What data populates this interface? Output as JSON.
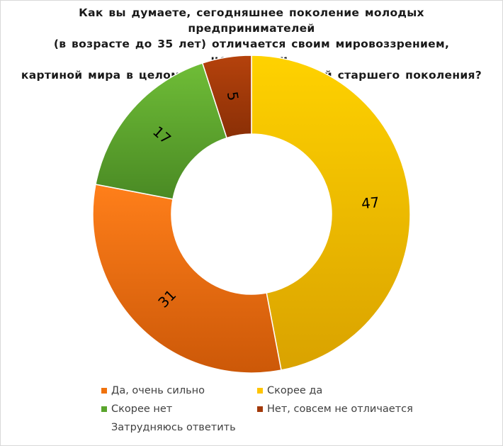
{
  "chart_data": {
    "type": "pie",
    "title": "Как вы думаете, сегодняшнее поколение молодых предпринимателей (в возрасте до 35 лет) отличается своим мировоззрением, ценностями, картиной мира в целом от предпринимателей старшего поколения?",
    "title_lines": [
      "Как вы думаете, сегодняшнее поколение молодых предпринимателей",
      "(в возрасте до 35 лет) отличается своим мировоззрением, ценностями,",
      "картиной мира в целом от предпринимателей старшего поколения?"
    ],
    "donut": true,
    "start_angle_deg": 0,
    "direction": "clockwise",
    "slices": [
      {
        "label": "Скорее да",
        "value": 47,
        "color": "#f7b900",
        "color_light": "#ffd200",
        "color_dark": "#d9a200"
      },
      {
        "label": "Да, очень сильно",
        "value": 31,
        "color": "#f0720d",
        "color_light": "#ff7f1a",
        "color_dark": "#cc5808"
      },
      {
        "label": "Скорее нет",
        "value": 17,
        "color": "#5aa52d",
        "color_light": "#6fbd37",
        "color_dark": "#4a8a24"
      },
      {
        "label": "Нет, совсем не отличается",
        "value": 5,
        "color": "#a33a0a",
        "color_light": "#b5420c",
        "color_dark": "#8a2f06"
      },
      {
        "label": "Затрудняюсь ответить",
        "value": 0,
        "color": "#7f7f7f",
        "color_light": "#8f8f8f",
        "color_dark": "#6f6f6f"
      }
    ],
    "legend_placement": "bottom",
    "legend": [
      {
        "label": "Да, очень сильно",
        "color": "#f0720d",
        "show_swatch": true
      },
      {
        "label": "Скорее да",
        "color": "#ffc400",
        "show_swatch": true
      },
      {
        "label": "Скорее нет",
        "color": "#5aa52d",
        "show_swatch": true
      },
      {
        "label": "Нет, совсем не отличается",
        "color": "#a33a0a",
        "show_swatch": true
      },
      {
        "label": "Затрудняюсь ответить",
        "color": "#7f7f7f",
        "show_swatch": false
      }
    ]
  }
}
